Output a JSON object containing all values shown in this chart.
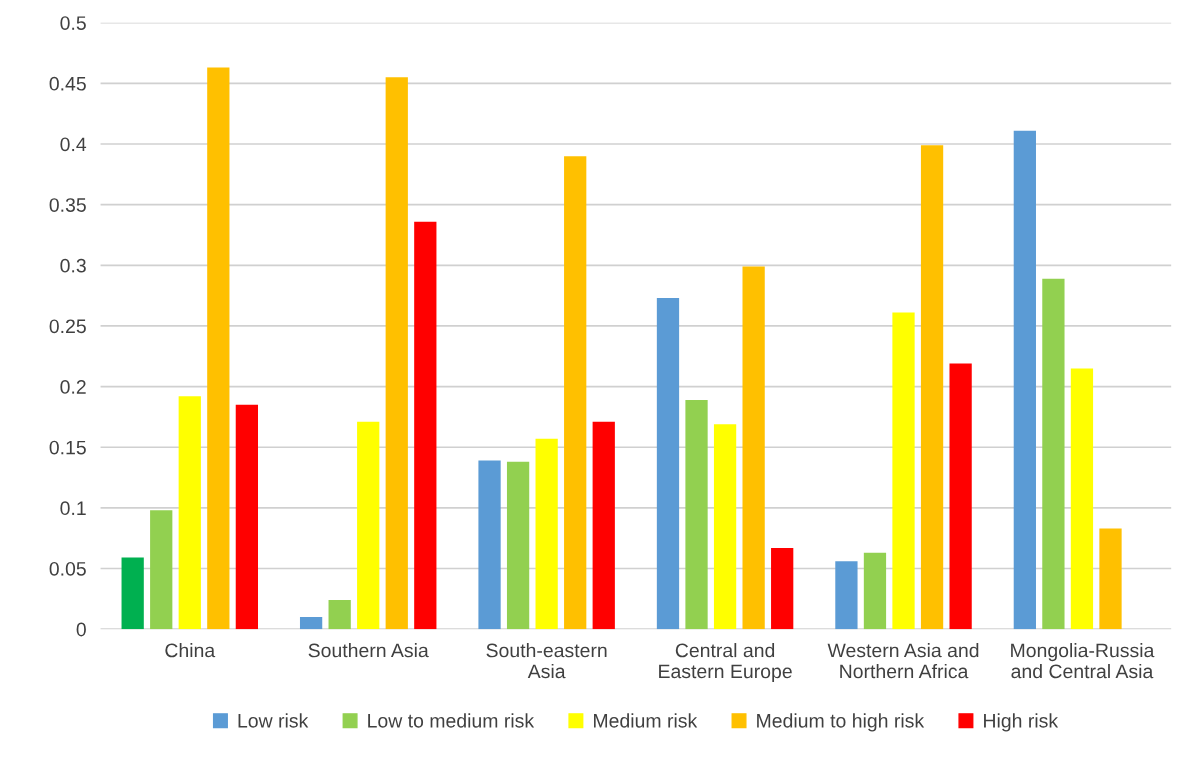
{
  "chart_data": {
    "type": "bar",
    "categories": [
      "China",
      "Southern Asia",
      "South-eastern\nAsia",
      "Central and\nEastern Europe",
      "Western Asia and\nNorthern Africa",
      "Mongolia-Russia\nand Central Asia"
    ],
    "series": [
      {
        "name": "Low risk",
        "color": "#5b9bd5",
        "colors": [
          "#00b050",
          "#5b9bd5",
          "#5b9bd5",
          "#5b9bd5",
          "#5b9bd5",
          "#5b9bd5"
        ],
        "values": [
          0.059,
          0.01,
          0.139,
          0.273,
          0.056,
          0.411
        ]
      },
      {
        "name": "Low to medium risk",
        "color": "#92d050",
        "values": [
          0.098,
          0.024,
          0.138,
          0.189,
          0.063,
          0.289
        ]
      },
      {
        "name": "Medium risk",
        "color": "#ffff00",
        "values": [
          0.192,
          0.171,
          0.157,
          0.169,
          0.261,
          0.215
        ]
      },
      {
        "name": "Medium to high risk",
        "color": "#ffc000",
        "values": [
          0.463,
          0.455,
          0.39,
          0.299,
          0.399,
          0.083
        ]
      },
      {
        "name": "High risk",
        "color": "#ff0000",
        "values": [
          0.185,
          0.336,
          0.171,
          0.067,
          0.219,
          null
        ]
      }
    ],
    "ylim": [
      0,
      0.5
    ],
    "yticks": [
      0,
      0.05,
      0.1,
      0.15,
      0.2,
      0.25,
      0.3,
      0.35,
      0.4,
      0.45,
      0.5
    ],
    "grid": "y",
    "legend": "bottom"
  }
}
